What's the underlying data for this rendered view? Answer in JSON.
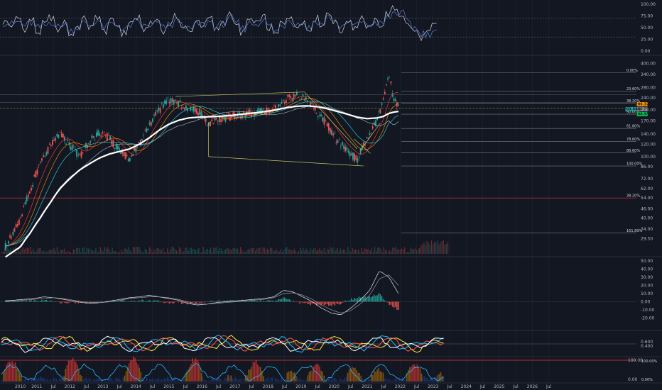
{
  "colors": {
    "background": "#131722",
    "grid": "#1f2430",
    "axis_text": "#b2b5be",
    "up": "#26a69a",
    "down": "#ef5350",
    "ma_white": "#ffffff",
    "ma_teal": "#26c6da",
    "ma_red": "#e53935",
    "ma_orange": "#ff9800",
    "trendline": "#c6c35a",
    "fib_line": "#787b86",
    "fib_red": "#f23645",
    "rsi_line": "#d1d4dc",
    "rsi_signal": "#5b7bd6",
    "macd_line": "#e0e3eb",
    "macd_signal": "#9598a1",
    "stoch_yellow": "#ffeb3b",
    "stoch_red": "#ff5252",
    "stoch_blue": "#29b6f6",
    "stoch_white": "#ffffff",
    "bottom_red": "#e53935",
    "bottom_orange": "#ff9800",
    "bottom_blue": "#2962ff",
    "badge_orange": "#ff9800",
    "badge_teal": "#26a69a",
    "badge_green": "#00c853"
  },
  "chart_data": [
    {
      "type": "line",
      "panel": "rsi",
      "y_ticks": [
        "100.00",
        "75.00",
        "50.00",
        "25.00",
        "0.00"
      ],
      "ylim": [
        0,
        100
      ],
      "levels": [
        70,
        30
      ],
      "series": [
        {
          "values": [
            62,
            55,
            70,
            48,
            66,
            40,
            58,
            72,
            45,
            60,
            35,
            52,
            68,
            50,
            74,
            42,
            63,
            55,
            38,
            61,
            70,
            47,
            57,
            66,
            44,
            59,
            73,
            51,
            40,
            65,
            56,
            69,
            46,
            62,
            78,
            54,
            41,
            67,
            58,
            72,
            49,
            36,
            60,
            75,
            53,
            64,
            45,
            70,
            58,
            82,
            60,
            44,
            66,
            52,
            71,
            48,
            63,
            57,
            80,
            90,
            78,
            56,
            42,
            30,
            38,
            55
          ]
        },
        {
          "values": [
            60,
            58,
            62,
            55,
            60,
            50,
            55,
            62,
            52,
            57,
            45,
            50,
            60,
            55,
            65,
            50,
            58,
            56,
            45,
            55,
            63,
            53,
            55,
            60,
            50,
            55,
            65,
            56,
            46,
            58,
            57,
            63,
            52,
            58,
            70,
            60,
            48,
            60,
            58,
            66,
            55,
            43,
            55,
            67,
            58,
            60,
            50,
            63,
            58,
            72,
            63,
            50,
            60,
            55,
            65,
            53,
            60,
            58,
            72,
            82,
            80,
            64,
            50,
            38,
            36,
            45
          ]
        }
      ]
    },
    {
      "type": "line",
      "panel": "price",
      "scale": "log",
      "ylim": [
        23,
        420
      ],
      "y_ticks": [
        "400.00",
        "340.00",
        "280.00",
        "240.00",
        "200.00",
        "170.00",
        "140.00",
        "120.00",
        "100.00",
        "86.00",
        "72.00",
        "62.00",
        "54.00",
        "46.00",
        "40.00",
        "34.00",
        "29.50"
      ],
      "x_ticks": [
        "2010",
        "2011",
        "Jul",
        "2012",
        "Jul",
        "2013",
        "Jul",
        "2014",
        "Jul",
        "2015",
        "Jul",
        "2016",
        "Jul",
        "2017",
        "Jul",
        "2018",
        "Jul",
        "2019",
        "Jul",
        "2020",
        "Jul",
        "2021",
        "Jul",
        "2022",
        "Jul",
        "2023",
        "Jul",
        "2024",
        "Jul",
        "2025",
        "Jul",
        "2026",
        "Jul"
      ],
      "x": [
        2009.5,
        2010.0,
        2010.3,
        2010.6,
        2010.9,
        2011.2,
        2011.5,
        2011.8,
        2012.1,
        2012.4,
        2012.7,
        2013.0,
        2013.3,
        2013.6,
        2013.9,
        2014.2,
        2014.5,
        2014.8,
        2015.1,
        2015.4,
        2015.7,
        2016.0,
        2016.3,
        2016.6,
        2016.9,
        2017.2,
        2017.5,
        2017.8,
        2018.1,
        2018.4,
        2018.7,
        2019.0,
        2019.3,
        2019.6,
        2019.9,
        2020.2,
        2020.5,
        2020.8,
        2021.0,
        2021.15,
        2021.3,
        2021.45
      ],
      "series": [
        {
          "name": "close",
          "values": [
            25,
            38,
            60,
            90,
            115,
            140,
            118,
            100,
            125,
            145,
            130,
            110,
            95,
            120,
            160,
            200,
            235,
            220,
            205,
            195,
            165,
            175,
            180,
            185,
            190,
            195,
            200,
            210,
            240,
            250,
            235,
            190,
            160,
            125,
            110,
            95,
            130,
            170,
            230,
            340,
            230,
            210
          ]
        },
        {
          "name": "ma_long",
          "values": [
            22,
            26,
            32,
            40,
            50,
            62,
            72,
            82,
            90,
            98,
            104,
            108,
            112,
            120,
            132,
            148,
            162,
            172,
            178,
            180,
            181,
            182,
            184,
            187,
            190,
            193,
            197,
            202,
            208,
            212,
            213,
            210,
            204,
            196,
            188,
            180,
            176,
            178,
            182,
            190,
            194,
            196
          ]
        }
      ],
      "fib_levels": [
        {
          "label": "0.00%",
          "value": 350
        },
        {
          "label": "23.60%",
          "value": 265
        },
        {
          "label": "38.20%",
          "value": 222
        },
        {
          "label": "50.00%",
          "value": 188
        },
        {
          "label": "61.80%",
          "value": 152
        },
        {
          "label": "78.60%",
          "value": 125
        },
        {
          "label": "88.60%",
          "value": 106
        },
        {
          "label": "100.00%",
          "value": 87
        },
        {
          "label": "38.20%",
          "value": 54
        },
        {
          "label": "161.80%",
          "value": 32
        }
      ],
      "price_badges": [
        "206.32",
        "200.55",
        "203.64",
        "198.95",
        "195.90",
        "192.21"
      ]
    },
    {
      "type": "bar",
      "panel": "macd",
      "ylim": [
        -30,
        50
      ],
      "y_ticks": [
        "50.00",
        "40.00",
        "30.00",
        "20.00",
        "10.00",
        "0.00",
        "-10.00",
        "-20.00"
      ],
      "series": [
        {
          "name": "macd",
          "values": [
            1,
            2,
            3,
            4,
            6,
            5,
            3,
            1,
            -1,
            -2,
            -1,
            1,
            3,
            5,
            6,
            8,
            6,
            4,
            2,
            -2,
            -4,
            -3,
            -1,
            0,
            1,
            2,
            3,
            4,
            6,
            14,
            12,
            6,
            0,
            -8,
            -14,
            -16,
            -8,
            2,
            14,
            38,
            30,
            10
          ]
        },
        {
          "name": "signal",
          "values": [
            0,
            1,
            2,
            3,
            4,
            5,
            4,
            2,
            0,
            -1,
            -1,
            0,
            2,
            4,
            5,
            6,
            6,
            5,
            3,
            0,
            -3,
            -3,
            -2,
            -1,
            0,
            1,
            2,
            3,
            5,
            10,
            11,
            8,
            3,
            -4,
            -10,
            -14,
            -11,
            -3,
            8,
            28,
            33,
            20
          ]
        }
      ]
    },
    {
      "type": "line",
      "panel": "stoch",
      "y_ticks": [
        "0.600",
        "0.400"
      ],
      "ylim": [
        0,
        1
      ]
    },
    {
      "type": "area",
      "panel": "bottom",
      "y_ticks": [
        "100.00",
        "0.00"
      ],
      "ylim": [
        0,
        100
      ],
      "side_label": "100.00%",
      "side_label_2": "0.00%"
    }
  ]
}
